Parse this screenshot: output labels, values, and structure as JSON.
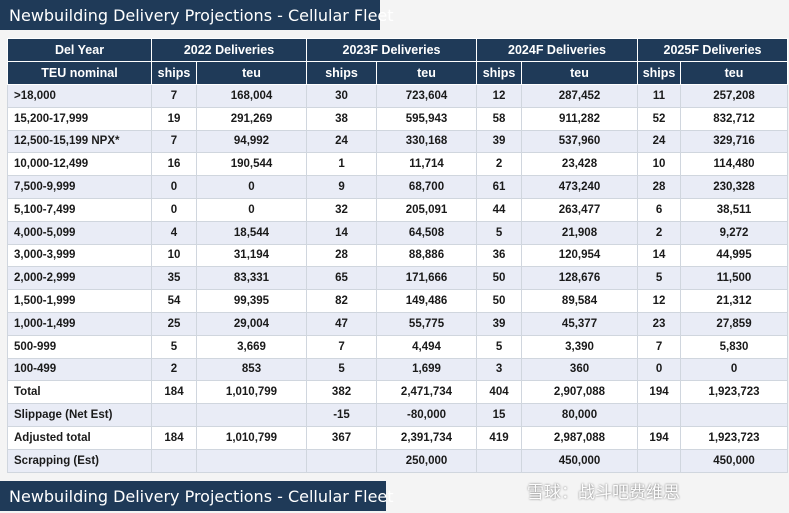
{
  "title": "Newbuilding Delivery Projections - Cellular Fleet",
  "header": {
    "row1": [
      "Del Year",
      "2022 Deliveries",
      "2023F Deliveries",
      "2024F Deliveries",
      "2025F Deliveries"
    ],
    "row2": [
      "TEU nominal",
      "ships",
      "teu",
      "ships",
      "teu",
      "ships",
      "teu",
      "ships",
      "teu"
    ]
  },
  "rows": [
    [
      ">18,000",
      "7",
      "168,004",
      "30",
      "723,604",
      "12",
      "287,452",
      "11",
      "257,208"
    ],
    [
      "15,200-17,999",
      "19",
      "291,269",
      "38",
      "595,943",
      "58",
      "911,282",
      "52",
      "832,712"
    ],
    [
      "12,500-15,199 NPX*",
      "7",
      "94,992",
      "24",
      "330,168",
      "39",
      "537,960",
      "24",
      "329,716"
    ],
    [
      "10,000-12,499",
      "16",
      "190,544",
      "1",
      "11,714",
      "2",
      "23,428",
      "10",
      "114,480"
    ],
    [
      "7,500-9,999",
      "0",
      "0",
      "9",
      "68,700",
      "61",
      "473,240",
      "28",
      "230,328"
    ],
    [
      "5,100-7,499",
      "0",
      "0",
      "32",
      "205,091",
      "44",
      "263,477",
      "6",
      "38,511"
    ],
    [
      "4,000-5,099",
      "4",
      "18,544",
      "14",
      "64,508",
      "5",
      "21,908",
      "2",
      "9,272"
    ],
    [
      "3,000-3,999",
      "10",
      "31,194",
      "28",
      "88,886",
      "36",
      "120,954",
      "14",
      "44,995"
    ],
    [
      "2,000-2,999",
      "35",
      "83,331",
      "65",
      "171,666",
      "50",
      "128,676",
      "5",
      "11,500"
    ],
    [
      "1,500-1,999",
      "54",
      "99,395",
      "82",
      "149,486",
      "50",
      "89,584",
      "12",
      "21,312"
    ],
    [
      "1,000-1,499",
      "25",
      "29,004",
      "47",
      "55,775",
      "39",
      "45,377",
      "23",
      "27,859"
    ],
    [
      "500-999",
      "5",
      "3,669",
      "7",
      "4,494",
      "5",
      "3,390",
      "7",
      "5,830"
    ],
    [
      "100-499",
      "2",
      "853",
      "5",
      "1,699",
      "3",
      "360",
      "0",
      "0"
    ],
    [
      "Total",
      "184",
      "1,010,799",
      "382",
      "2,471,734",
      "404",
      "2,907,088",
      "194",
      "1,923,723"
    ],
    [
      "Slippage (Net Est)",
      "",
      "",
      "-15",
      "-80,000",
      "15",
      "80,000",
      "",
      ""
    ],
    [
      "Adjusted total",
      "184",
      "1,010,799",
      "367",
      "2,391,734",
      "419",
      "2,987,088",
      "194",
      "1,923,723"
    ],
    [
      "Scrapping (Est)",
      "",
      "",
      "",
      "250,000",
      "",
      "450,000",
      "",
      "450,000"
    ]
  ],
  "watermark": "雪球：战斗吧费维思"
}
